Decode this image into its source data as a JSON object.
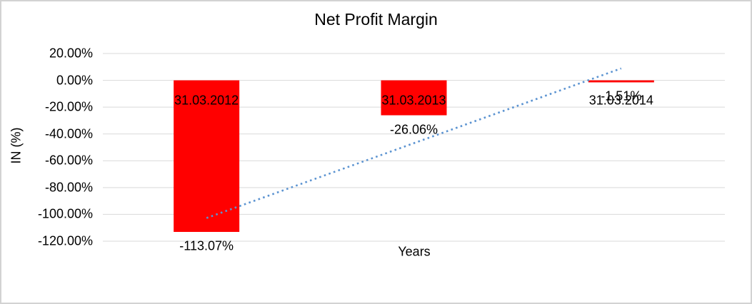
{
  "window": {
    "background_color": "#ffffff",
    "border_color": "#d2d2d2"
  },
  "chart_data": {
    "type": "bar",
    "title": "Net Profit Margin",
    "xlabel": "Years",
    "ylabel": "IN (%)",
    "categories": [
      "31.03.2012",
      "31.03.2013",
      "31.03.2014"
    ],
    "values": [
      -113.07,
      -26.06,
      -1.51
    ],
    "data_labels": [
      "-113.07%",
      "-26.06%",
      "-1.51%"
    ],
    "bar_color": "#ff0000",
    "ylim": [
      -120,
      20
    ],
    "ytick_values": [
      20,
      0,
      -20,
      -40,
      -60,
      -80,
      -100,
      -120
    ],
    "ytick_labels": [
      "20.00%",
      "0.00%",
      "-20.00%",
      "-40.00%",
      "-60.00%",
      "-80.00%",
      "-100.00%",
      "-120.00%"
    ],
    "grid": true,
    "gridline_color": "#d9d9d9",
    "legend": "none",
    "trendline": {
      "type": "linear",
      "style": "dotted",
      "color": "#5b93d1",
      "start_value": -102.7,
      "end_value": 8.9
    }
  }
}
